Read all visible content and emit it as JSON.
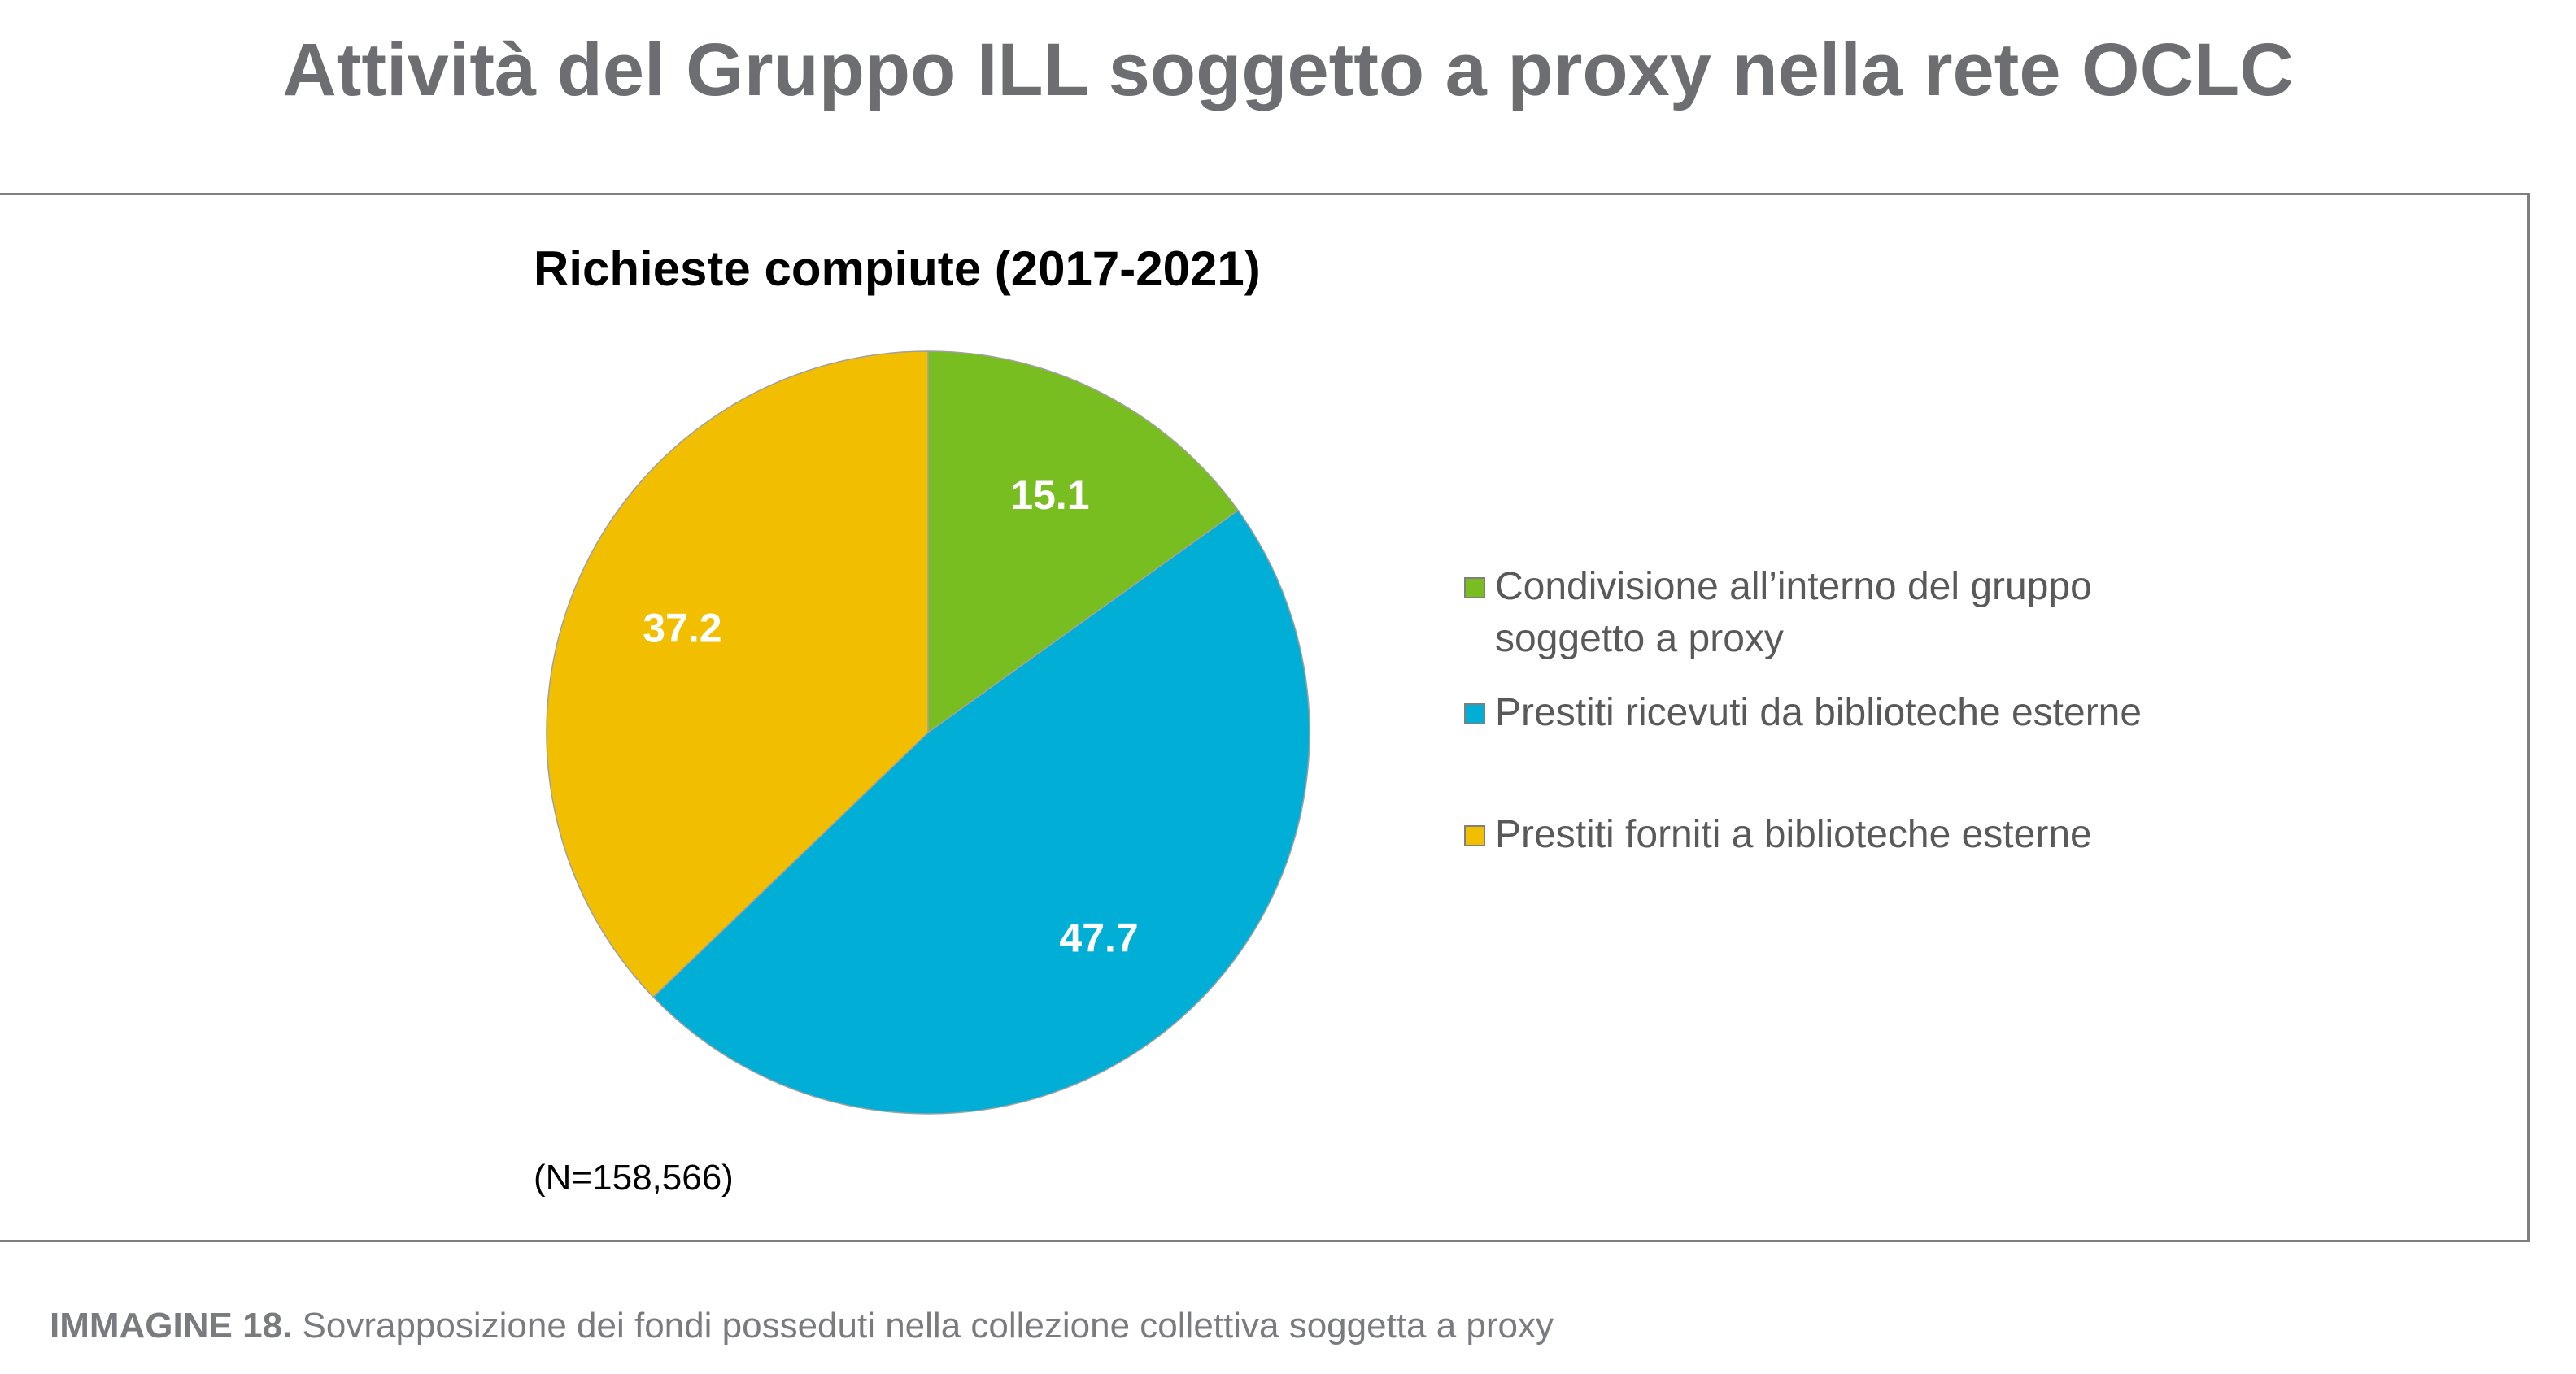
{
  "page_title": "Attività del Gruppo ILL soggetto a proxy nella rete OCLC",
  "caption": {
    "label": "IMMAGINE 18.",
    "text": " Sovrapposizione dei fondi posseduti nella collezione collettiva soggetta a proxy"
  },
  "chart_data": {
    "type": "pie",
    "title": "Richieste compiute (2017-2021)",
    "note": "(N=158,566)",
    "start": "12 o'clock, clockwise",
    "legend_position": "right",
    "categories": [
      "Condivisione all’interno del gruppo soggetto a proxy",
      "Prestiti ricevuti da biblioteche esterne",
      "Prestiti forniti a biblioteche esterne"
    ],
    "values": [
      15.1,
      47.7,
      37.2
    ],
    "labels": [
      "15.1",
      "47.7",
      "37.2"
    ],
    "colors": [
      "#78be20",
      "#00aed6",
      "#f2be00"
    ]
  },
  "legend": {
    "items": [
      {
        "line1": "Condivisione all’interno del gruppo",
        "line2": "soggetto a proxy"
      },
      {
        "line1": "Prestiti ricevuti da biblioteche esterne"
      },
      {
        "line1": "Prestiti forniti a biblioteche esterne"
      }
    ]
  }
}
